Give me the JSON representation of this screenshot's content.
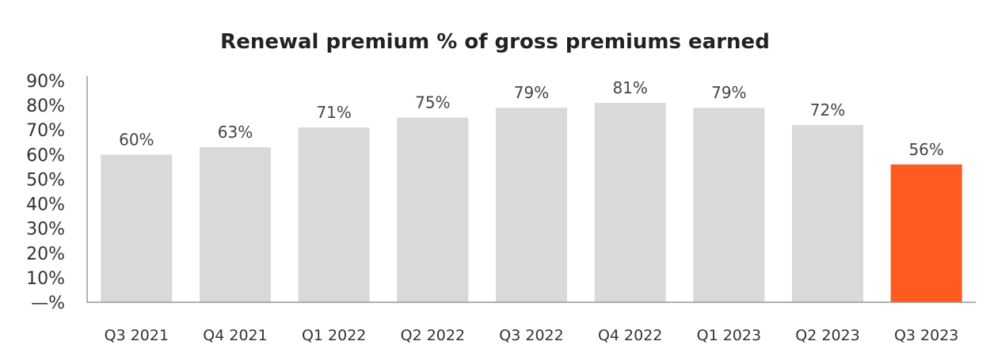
{
  "chart_data": {
    "type": "bar",
    "title": "Renewal premium % of gross premiums earned",
    "xlabel": "",
    "ylabel": "",
    "categories": [
      "Q3 2021",
      "Q4 2021",
      "Q1 2022",
      "Q2 2022",
      "Q3 2022",
      "Q4 2022",
      "Q1 2023",
      "Q2 2023",
      "Q3 2023"
    ],
    "values": [
      60,
      63,
      71,
      75,
      79,
      81,
      79,
      72,
      56
    ],
    "data_labels": [
      "60%",
      "63%",
      "71%",
      "75%",
      "79%",
      "81%",
      "79%",
      "72%",
      "56%"
    ],
    "ylim": [
      0,
      90
    ],
    "yticks": [
      0,
      10,
      20,
      30,
      40,
      50,
      60,
      70,
      80,
      90
    ],
    "ytick_labels": [
      "—%",
      "10%",
      "20%",
      "30%",
      "40%",
      "50%",
      "60%",
      "70%",
      "80%",
      "90%"
    ],
    "grid": false,
    "legend": "none",
    "colors": {
      "default_bar": "#d9d9d9",
      "highlight_bar": "#ff5a1f",
      "axis": "#999999"
    },
    "highlight_index": 8
  }
}
